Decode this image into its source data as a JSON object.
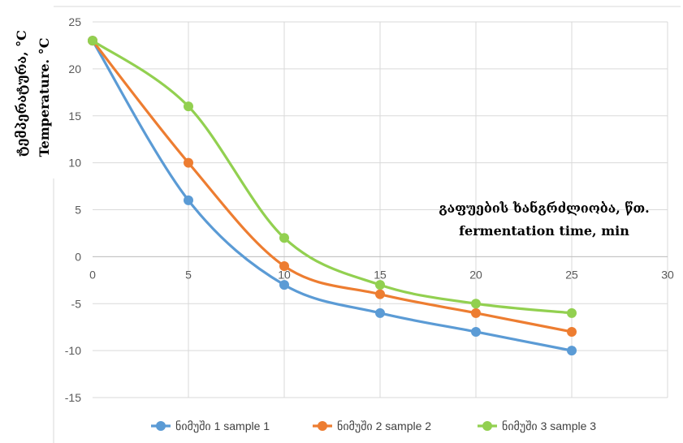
{
  "chart_data": {
    "type": "line",
    "title": "",
    "xlabel_lines": [
      "გაფუების ხანგრძლიობა, წთ.",
      "fermentation time, min"
    ],
    "ylabel_lines": [
      "ტემპერატურა, °C",
      "Temperature. °C"
    ],
    "x": [
      0,
      5,
      10,
      15,
      20,
      25
    ],
    "xlim": [
      0,
      30
    ],
    "ylim": [
      -15,
      25
    ],
    "xticks": [
      0,
      5,
      10,
      15,
      20,
      25,
      30
    ],
    "yticks": [
      -15,
      -10,
      -5,
      0,
      5,
      10,
      15,
      20,
      25
    ],
    "grid": true,
    "smooth": true,
    "legend_position": "bottom",
    "series": [
      {
        "name": "ნიმუში 1 sample 1",
        "color": "#5b9bd5",
        "values": [
          23,
          6,
          -3,
          -6,
          -8,
          -10
        ]
      },
      {
        "name": "ნიმუში 2 sample 2",
        "color": "#ed7d31",
        "values": [
          23,
          10,
          -1,
          -4,
          -6,
          -8
        ]
      },
      {
        "name": "ნიმუში 3 sample 3",
        "color": "#92d050",
        "values": [
          23,
          16,
          2,
          -3,
          -5,
          -6
        ]
      }
    ]
  }
}
